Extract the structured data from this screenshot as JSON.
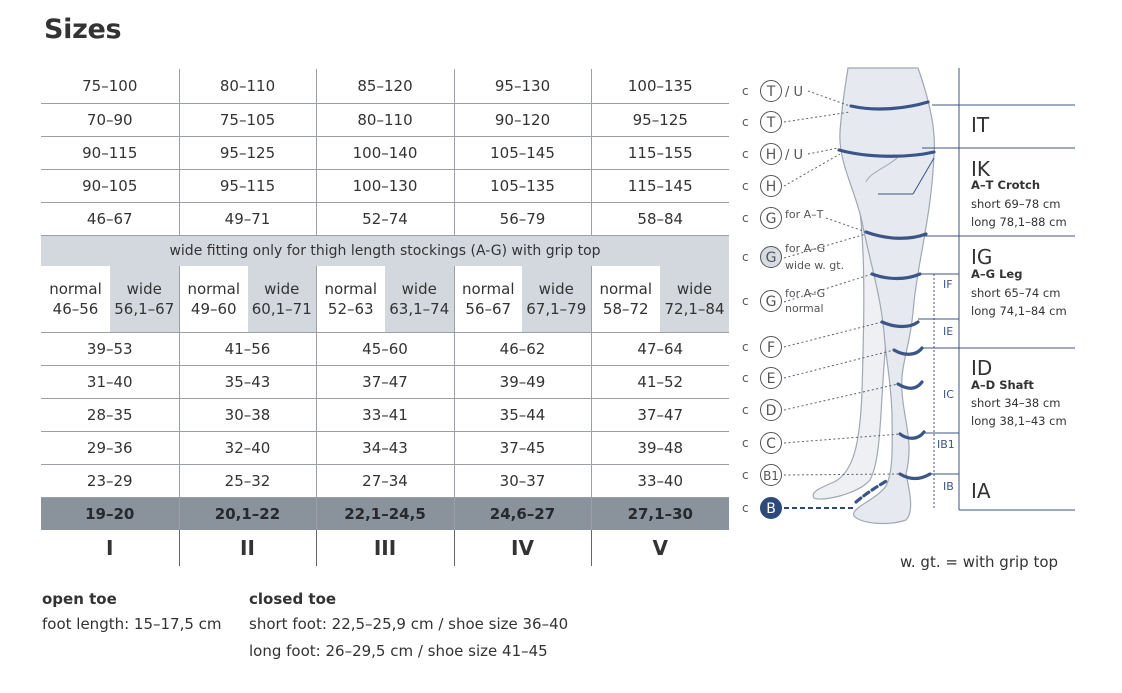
{
  "title": "Sizes",
  "table": {
    "top_rows": [
      [
        "75–100",
        "80–110",
        "85–120",
        "95–130",
        "100–135"
      ],
      [
        "70–90",
        "75–105",
        "80–110",
        "90–120",
        "95–125"
      ],
      [
        "90–115",
        "95–125",
        "100–140",
        "105–145",
        "115–155"
      ],
      [
        "90–105",
        "95–115",
        "100–130",
        "105–135",
        "115–145"
      ],
      [
        "46–67",
        "49–71",
        "52–74",
        "56–79",
        "58–84"
      ]
    ],
    "wide_note": "wide fitting only for thigh length stockings (A-G) with grip top",
    "normal_label": "normal",
    "wide_label": "wide",
    "normal_wide": [
      {
        "normal": "46–56",
        "wide": "56,1–67"
      },
      {
        "normal": "49–60",
        "wide": "60,1–71"
      },
      {
        "normal": "52–63",
        "wide": "63,1–74"
      },
      {
        "normal": "56–67",
        "wide": "67,1–79"
      },
      {
        "normal": "58–72",
        "wide": "72,1–84"
      }
    ],
    "bottom_rows": [
      [
        "39–53",
        "41–56",
        "45–60",
        "46–62",
        "47–64"
      ],
      [
        "31–40",
        "35–43",
        "37–47",
        "39–49",
        "41–52"
      ],
      [
        "28–35",
        "30–38",
        "33–41",
        "35–44",
        "37–47"
      ],
      [
        "29–36",
        "32–40",
        "34–43",
        "37–45",
        "39–48"
      ],
      [
        "23–29",
        "25–32",
        "27–34",
        "30–37",
        "33–40"
      ]
    ],
    "foot_row": [
      "19–20",
      "20,1–22",
      "22,1–24,5",
      "24,6–27",
      "27,1–30"
    ],
    "size_labels": [
      "I",
      "II",
      "III",
      "IV",
      "V"
    ]
  },
  "open_toe": {
    "heading": "open toe",
    "line1": "foot length: 15–17,5 cm"
  },
  "closed_toe": {
    "heading": "closed toe",
    "line1": "short foot: 22,5–25,9 cm / shoe size 36–40",
    "line2": "long foot: 26–29,5 cm / shoe size 41–45"
  },
  "diagram": {
    "c_prefix": "c",
    "markers": [
      {
        "letter": "T",
        "suffix": "/ U"
      },
      {
        "letter": "T",
        "suffix": ""
      },
      {
        "letter": "H",
        "suffix": "/ U"
      },
      {
        "letter": "H",
        "suffix": ""
      },
      {
        "letter": "G",
        "suffix": "",
        "note1": "for A–T",
        "note2": ""
      },
      {
        "letter": "G",
        "suffix": "",
        "note1": "for A–G",
        "note2": "wide w. gt."
      },
      {
        "letter": "G",
        "suffix": "",
        "note1": "for A–G",
        "note2": "normal"
      },
      {
        "letter": "F",
        "suffix": ""
      },
      {
        "letter": "E",
        "suffix": ""
      },
      {
        "letter": "D",
        "suffix": ""
      },
      {
        "letter": "C",
        "suffix": ""
      },
      {
        "letter": "B1",
        "suffix": ""
      },
      {
        "letter": "B",
        "suffix": ""
      }
    ],
    "segments": [
      "IF",
      "IE",
      "IC",
      "IB1",
      "IB"
    ],
    "lengths": {
      "it": {
        "code": "IT"
      },
      "ik": {
        "code": "IK",
        "name": "A–T Crotch",
        "short": "short 69–78 cm",
        "long": "long 78,1–88 cm"
      },
      "ig": {
        "code": "IG",
        "name": "A–G Leg",
        "short": "short 65–74 cm",
        "long": "long 74,1–84 cm"
      },
      "id": {
        "code": "ID",
        "name": "A–D  Shaft",
        "short": "short 34–38 cm",
        "long": "long 38,1–43 cm"
      },
      "ia": {
        "code": "IA"
      }
    },
    "legend_note": "w. gt. = with grip top",
    "colors": {
      "band": "#3b5586",
      "marker_b_fill": "#2e4a7a",
      "leg_fill": "#e6e9ef",
      "leg_stroke": "#9fa8b5"
    }
  }
}
